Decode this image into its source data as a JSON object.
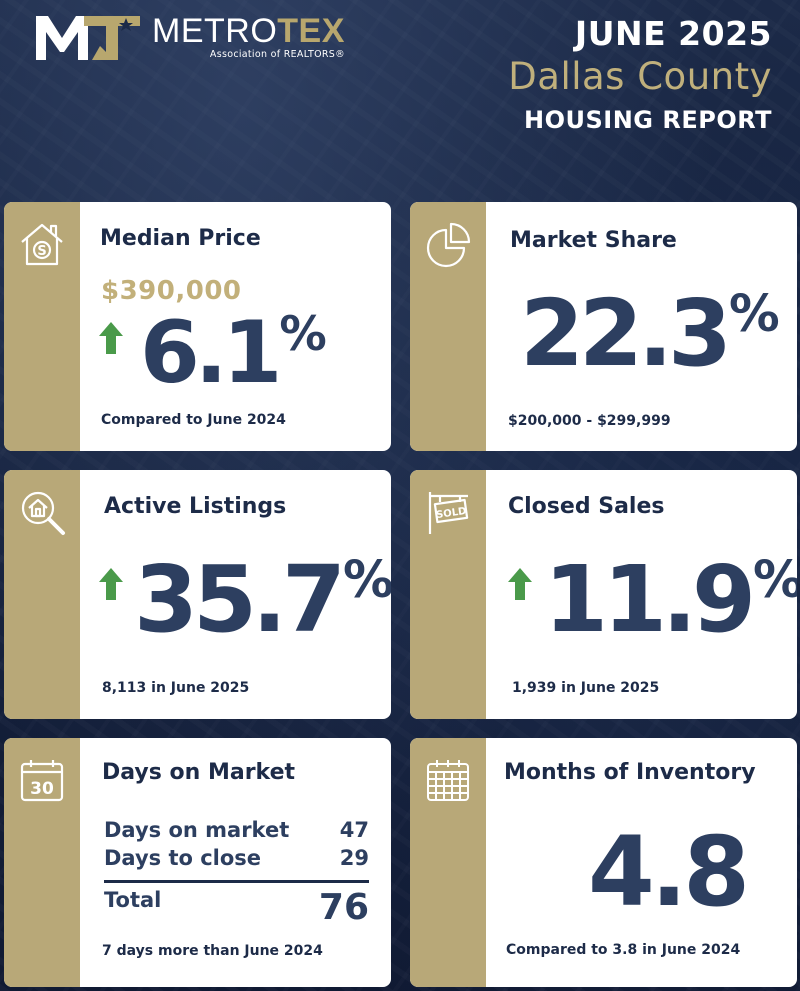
{
  "header": {
    "logo": {
      "name_white": "METRO",
      "name_gold": "TEX",
      "subtitle": "Association of REALTORS®"
    },
    "date": "JUNE 2025",
    "county": "Dallas County",
    "report": "HOUSING REPORT"
  },
  "colors": {
    "navy": "#1d2b48",
    "gold": "#b8a878",
    "value": "#2d3f60",
    "arrow_up": "#4a9a4a"
  },
  "cards": {
    "median_price": {
      "icon": "house-dollar-icon",
      "title": "Median Price",
      "price": "$390,000",
      "trend": "up",
      "change": "6.1",
      "unit": "%",
      "note": "Compared to June 2024"
    },
    "market_share": {
      "icon": "pie-chart-icon",
      "title": "Market Share",
      "value": "22.3",
      "unit": "%",
      "note": "$200,000 - $299,999"
    },
    "active_listings": {
      "icon": "house-search-icon",
      "title": "Active Listings",
      "trend": "up",
      "change": "35.7",
      "unit": "%",
      "note": "8,113 in June 2025"
    },
    "closed_sales": {
      "icon": "sold-sign-icon",
      "sign_text": "SOLD",
      "title": "Closed Sales",
      "trend": "up",
      "change": "11.9",
      "unit": "%",
      "note": "1,939 in June 2025"
    },
    "days_on_market": {
      "icon": "calendar-30-icon",
      "calendar_day": "30",
      "title": "Days on Market",
      "rows": [
        {
          "label": "Days on market",
          "value": "47"
        },
        {
          "label": "Days to close",
          "value": "29"
        }
      ],
      "total_label": "Total",
      "total_value": "76",
      "note": "7 days more than June 2024"
    },
    "months_inventory": {
      "icon": "calendar-grid-icon",
      "title": "Months of Inventory",
      "value": "4.8",
      "note": "Compared to 3.8 in June 2024"
    }
  }
}
